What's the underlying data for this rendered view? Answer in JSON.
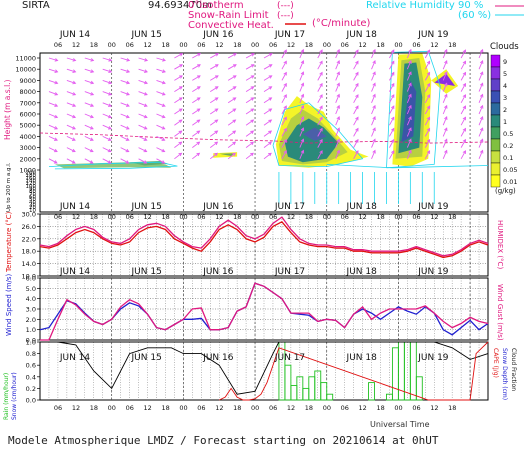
{
  "header": {
    "station": "SIRTA",
    "coords": "94.693470m",
    "zero_isotherm": "0°isotherm",
    "snow_rain": "Snow-Rain Limit",
    "convective": "Convective Heat.",
    "units": "(°C/minute)",
    "relhum_label": "Relative Humidity",
    "rh90": "90 %",
    "rh60": "(60 %)",
    "dash": "(---)",
    "solid": "(—)"
  },
  "footer": {
    "title": "Modele Atmospherique LMDZ / Forecast starting on 20210614 at 0hUT",
    "xaxis": "Universal Time"
  },
  "colors": {
    "magenta": "#e0187f",
    "cyan": "#20d6ee",
    "arrow": "#e45ff0",
    "blue": "#2020d0",
    "red": "#e01010",
    "green": "#20c020",
    "black": "#000000",
    "cloud_dark": "#2a8a7a",
    "cloud_mid": "#b8d040",
    "cloud_light": "#f4f428"
  },
  "chart_data": [
    {
      "type": "heatmap",
      "name": "clouds",
      "ylabel": "Height (m a.s.l.)",
      "ylabel_low": "Up to 200 m a.g.l.",
      "yticks_upper": [
        "1000",
        "2000",
        "3000",
        "4000",
        "5000",
        "6000",
        "7000",
        "8000",
        "9000",
        "10000",
        "11000"
      ],
      "yticks_lower": [
        "10",
        "20",
        "30",
        "40",
        "50",
        "60",
        "70",
        "80",
        "90",
        "100",
        "120",
        "140",
        "160",
        "180",
        "200"
      ],
      "colorbar_title": "Clouds",
      "colorbar_levels": [
        "9",
        "5",
        "4",
        "3",
        "2",
        "1",
        "0.5",
        "0.2",
        "0.1",
        "0.05",
        "0.01"
      ],
      "colorbar_units": "(g/kg)",
      "colorbar_colors": [
        "#b000ff",
        "#8a30e0",
        "#6040c8",
        "#3a50b4",
        "#2c6a9e",
        "#2a8a7a",
        "#40a060",
        "#80c040",
        "#c8e040",
        "#eaf030",
        "#ffff20"
      ]
    },
    {
      "type": "line",
      "name": "temperature",
      "ylabel": "Temperature (°C)",
      "ylabel_right": "HUMIDEX (°C)",
      "yticks": [
        "10.0",
        "14.0",
        "18.0",
        "22.0",
        "26.0",
        "30.0"
      ],
      "ylim": [
        10,
        30
      ],
      "series": [
        {
          "name": "temperature",
          "color": "#e01010",
          "x": [
            0,
            3,
            6,
            9,
            12,
            15,
            18,
            21,
            24,
            27,
            30,
            33,
            36,
            39,
            42,
            45,
            48,
            51,
            54,
            57,
            60,
            63,
            66,
            69,
            72,
            75,
            78,
            81,
            84,
            87,
            90,
            93,
            96,
            99,
            102,
            105,
            108,
            111,
            114,
            117,
            120,
            123,
            126,
            129,
            132,
            135,
            138,
            141,
            144,
            147,
            150
          ],
          "values": [
            19.5,
            19,
            20,
            22,
            24,
            25,
            24,
            22,
            20.5,
            20,
            21,
            24,
            25.5,
            26,
            25,
            22,
            20.5,
            19,
            18,
            21,
            25,
            26.5,
            25,
            22,
            21,
            22.5,
            26,
            27.5,
            24,
            21,
            20,
            19.5,
            19.5,
            19,
            19,
            18,
            18,
            17.5,
            17.5,
            17.5,
            17.5,
            18,
            19,
            18,
            17,
            16,
            16.5,
            18,
            20,
            21,
            20
          ]
        },
        {
          "name": "humidex",
          "color": "#e0187f",
          "x": [
            0,
            3,
            6,
            9,
            12,
            15,
            18,
            21,
            24,
            27,
            30,
            33,
            36,
            39,
            42,
            45,
            48,
            51,
            54,
            57,
            60,
            63,
            66,
            69,
            72,
            75,
            78,
            81,
            84,
            87,
            90,
            93,
            96,
            99,
            102,
            105,
            108,
            111,
            114,
            117,
            120,
            123,
            126,
            129,
            132,
            135,
            138,
            141,
            144,
            147,
            150
          ],
          "values": [
            20,
            19.5,
            20.5,
            23,
            25,
            26,
            25,
            22.5,
            21,
            20.5,
            22,
            25,
            26.5,
            27,
            26,
            23,
            21,
            19.5,
            19,
            22,
            26,
            28,
            26,
            23,
            22,
            23.5,
            27,
            29,
            25,
            22,
            20.5,
            20,
            20,
            19.5,
            19.5,
            18.5,
            18.5,
            18,
            18,
            18,
            18,
            18.5,
            19.5,
            18.5,
            17.5,
            16.5,
            17,
            18.5,
            20.5,
            21.5,
            20.5
          ]
        }
      ]
    },
    {
      "type": "line",
      "name": "wind",
      "ylabel": "Wind Speed (m/s)",
      "ylabel_right": "Wind Gust (m/s)",
      "yticks": [
        "0.0",
        "1.0",
        "2.0",
        "3.0",
        "4.0",
        "5.0",
        "6.0"
      ],
      "ylim": [
        0,
        6
      ],
      "series": [
        {
          "name": "wind_speed",
          "color": "#2020d0",
          "x": [
            0,
            3,
            6,
            9,
            12,
            15,
            18,
            21,
            24,
            27,
            30,
            33,
            36,
            39,
            42,
            45,
            48,
            51,
            54,
            57,
            60,
            63,
            66,
            69,
            72,
            75,
            78,
            81,
            84,
            87,
            90,
            93,
            96,
            99,
            102,
            105,
            108,
            111,
            114,
            117,
            120,
            123,
            126,
            129,
            132,
            135,
            138,
            141,
            144,
            147,
            150
          ],
          "values": [
            1.0,
            1.2,
            2.5,
            3.8,
            3.5,
            2.6,
            1.8,
            1.5,
            2.0,
            3.0,
            3.6,
            3.3,
            2.5,
            1.2,
            1.0,
            1.5,
            2.0,
            2.0,
            2.1,
            1.0,
            1.0,
            1.2,
            2.8,
            3.2,
            5.5,
            5.2,
            4.6,
            4.0,
            2.6,
            2.5,
            2.4,
            1.8,
            2.0,
            1.9,
            1.2,
            2.5,
            3.0,
            2.6,
            2.0,
            2.6,
            3.2,
            2.8,
            2.5,
            3.2,
            2.6,
            1.0,
            0.5,
            1.2,
            1.9,
            1.0,
            1.6
          ]
        },
        {
          "name": "wind_gust",
          "color": "#e0187f",
          "x": [
            0,
            3,
            6,
            9,
            12,
            15,
            18,
            21,
            24,
            27,
            30,
            33,
            36,
            39,
            42,
            45,
            48,
            51,
            54,
            57,
            60,
            63,
            66,
            69,
            72,
            75,
            78,
            81,
            84,
            87,
            90,
            93,
            96,
            99,
            102,
            105,
            108,
            111,
            114,
            117,
            120,
            123,
            126,
            129,
            132,
            135,
            138,
            141,
            144,
            147,
            150
          ],
          "values": [
            0,
            0,
            2.0,
            3.9,
            3.4,
            2.5,
            1.8,
            1.5,
            2.0,
            3.2,
            3.9,
            3.5,
            2.5,
            1.2,
            1.0,
            1.5,
            2.0,
            3.0,
            3.1,
            1.0,
            1.0,
            1.2,
            2.8,
            3.2,
            5.5,
            5.2,
            4.6,
            4.0,
            2.6,
            2.6,
            2.6,
            1.8,
            2.0,
            1.9,
            1.2,
            2.5,
            3.2,
            2.0,
            2.6,
            3.0,
            3.0,
            3.0,
            3.0,
            3.3,
            2.6,
            1.8,
            1.2,
            1.6,
            2.2,
            1.8,
            1.6
          ]
        }
      ]
    },
    {
      "type": "bar",
      "name": "precipitation",
      "ylabel_left": "Rain (mm/hour)",
      "ylabel_left2": "Snow (cm/hour)",
      "ylabel_right": "CAPE (J/g)",
      "ylabel_right2": "Snow Depth (cm)",
      "ylabel_right3": "Cloud Fraction",
      "yticks": [
        "0.0",
        "0.2",
        "0.4",
        "0.6",
        "0.8",
        "1.0"
      ],
      "ylim": [
        0,
        1
      ],
      "cloud_fraction": {
        "color": "#000000",
        "x": [
          0,
          6,
          12,
          18,
          24,
          30,
          36,
          40,
          44,
          48,
          54,
          60,
          66,
          72,
          78,
          80,
          84,
          90,
          96,
          102,
          108,
          114,
          120,
          126,
          132,
          138,
          144,
          150
        ],
        "values": [
          1,
          1,
          0.95,
          0.5,
          0.2,
          0.8,
          0.9,
          0.9,
          0.9,
          0.8,
          0.8,
          0.6,
          0.1,
          0.15,
          0.8,
          1,
          1,
          1,
          1,
          1,
          1,
          1,
          1,
          1,
          1,
          0.9,
          0.7,
          0.8
        ]
      },
      "rain_bars": {
        "color": "#20c020",
        "x": [
          80,
          82,
          84,
          86,
          88,
          90,
          92,
          94,
          96,
          98,
          100,
          102,
          104,
          106,
          108,
          110,
          112,
          114,
          116,
          118,
          120,
          122,
          124,
          126
        ],
        "values": [
          1,
          0.6,
          0.25,
          0.4,
          0.2,
          0.4,
          0.5,
          0.3,
          0.1,
          0,
          0,
          0,
          0,
          0,
          0,
          0.3,
          0,
          0,
          0.1,
          0.9,
          1,
          1,
          1,
          0.4
        ]
      },
      "cape": {
        "color": "#e01010",
        "x": [
          60,
          62,
          64,
          66,
          68,
          70,
          72,
          74,
          76,
          78,
          80,
          130,
          134,
          138,
          142,
          144,
          146,
          148,
          150
        ],
        "values": [
          0,
          0.05,
          0.2,
          0.05,
          0,
          0,
          0.02,
          0.1,
          0.3,
          0.6,
          0.9,
          0,
          0,
          0,
          0,
          0,
          0.8,
          0.9,
          1
        ]
      }
    }
  ],
  "x_axis": {
    "day_labels": [
      "JUN 14",
      "JUN 15",
      "JUN 16",
      "JUN 17",
      "JUN 18",
      "JUN 19"
    ],
    "hour_labels": [
      "06",
      "12",
      "18",
      "00",
      "06",
      "12",
      "18",
      "00",
      "06",
      "12",
      "18",
      "00",
      "06",
      "12",
      "18",
      "00",
      "06",
      "12",
      "18",
      "00",
      "06",
      "12",
      "18"
    ],
    "x_hours": [
      6,
      12,
      18,
      24,
      30,
      36,
      42,
      48,
      54,
      60,
      66,
      72,
      78,
      84,
      90,
      96,
      102,
      108,
      114,
      120,
      126,
      132,
      138
    ]
  }
}
